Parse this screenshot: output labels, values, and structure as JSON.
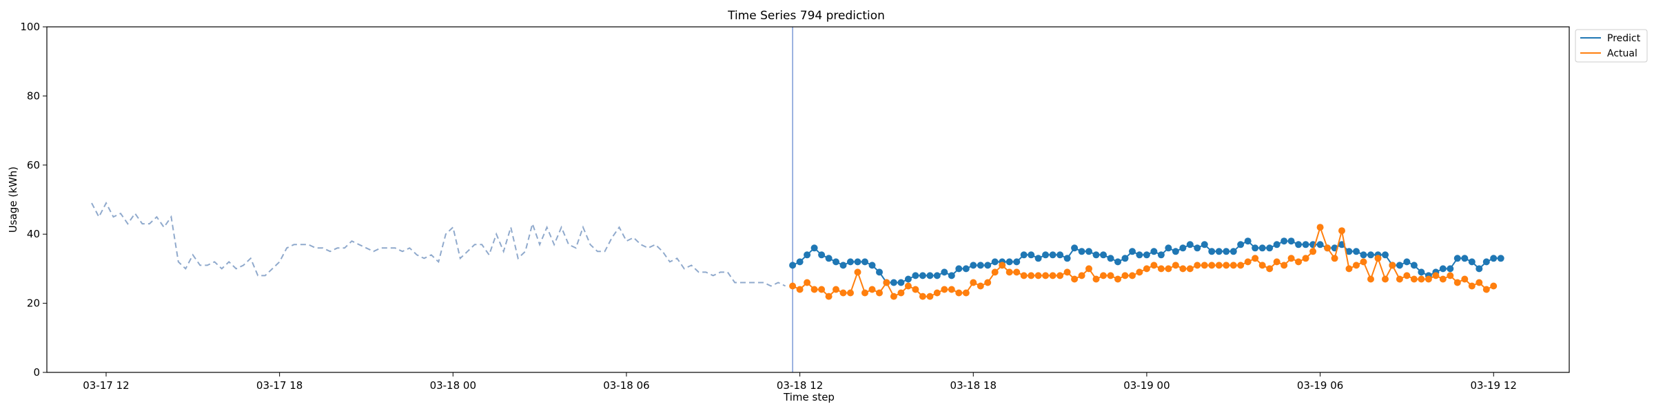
{
  "chart_data": {
    "type": "line",
    "title": "Time Series 794 prediction",
    "xlabel": "Time step",
    "ylabel": "Usage (kWh)",
    "ylim": [
      0,
      100
    ],
    "yticks": [
      0,
      20,
      40,
      60,
      80,
      100
    ],
    "xlim": [
      "2023-03-17T09:57",
      "2023-03-19T14:37"
    ],
    "xticks": [
      {
        "t": "2023-03-17T12:00",
        "label": "03-17 12"
      },
      {
        "t": "2023-03-17T18:00",
        "label": "03-17 18"
      },
      {
        "t": "2023-03-18T00:00",
        "label": "03-18 00"
      },
      {
        "t": "2023-03-18T06:00",
        "label": "03-18 06"
      },
      {
        "t": "2023-03-18T12:00",
        "label": "03-18 12"
      },
      {
        "t": "2023-03-18T18:00",
        "label": "03-18 18"
      },
      {
        "t": "2023-03-19T00:00",
        "label": "03-19 00"
      },
      {
        "t": "2023-03-19T06:00",
        "label": "03-19 06"
      },
      {
        "t": "2023-03-19T12:00",
        "label": "03-19 12"
      }
    ],
    "step_minutes": 15,
    "forecast_start": "2023-03-18T11:45",
    "grid": false,
    "legend_position": "top-right",
    "series": [
      {
        "key": "history",
        "start": "2023-03-17T11:30",
        "style": "dashed",
        "color": "#8fa9cc",
        "values": [
          49,
          45,
          49,
          45,
          46,
          43,
          46,
          43,
          43,
          45,
          42,
          45,
          32,
          30,
          34,
          31,
          31,
          32,
          30,
          32,
          30,
          31,
          33,
          28,
          28,
          30,
          32,
          36,
          37,
          37,
          37,
          36,
          36,
          35,
          36,
          36,
          38,
          37,
          36,
          35,
          36,
          36,
          36,
          35,
          36,
          34,
          33,
          34,
          32,
          40,
          42,
          33,
          35,
          37,
          37,
          34,
          40,
          35,
          42,
          33,
          35,
          43,
          37,
          42,
          37,
          42,
          37,
          36,
          42,
          37,
          35,
          35,
          39,
          42,
          38,
          39,
          37,
          36,
          37,
          35,
          32,
          33,
          30,
          31,
          29,
          29,
          28,
          29,
          29,
          26,
          26,
          26,
          26,
          26,
          25,
          26,
          25
        ]
      },
      {
        "key": "predict",
        "name": "Predict",
        "start": "2023-03-18T11:45",
        "color": "#1f77b4",
        "marker": true,
        "values": [
          31,
          32,
          34,
          36,
          34,
          33,
          32,
          31,
          32,
          32,
          32,
          31,
          29,
          26,
          26,
          26,
          27,
          28,
          28,
          28,
          28,
          29,
          28,
          30,
          30,
          31,
          31,
          31,
          32,
          32,
          32,
          32,
          34,
          34,
          33,
          34,
          34,
          34,
          33,
          36,
          35,
          35,
          34,
          34,
          33,
          32,
          33,
          35,
          34,
          34,
          35,
          34,
          36,
          35,
          36,
          37,
          36,
          37,
          35,
          35,
          35,
          35,
          37,
          38,
          36,
          36,
          36,
          37,
          38,
          38,
          37,
          37,
          37,
          37,
          36,
          36,
          37,
          35,
          35,
          34,
          34,
          34,
          34,
          31,
          31,
          32,
          31,
          29,
          28,
          29,
          30,
          30,
          33,
          33,
          32,
          30,
          32,
          33,
          33
        ]
      },
      {
        "key": "actual",
        "name": "Actual",
        "start": "2023-03-18T11:45",
        "color": "#ff7f0e",
        "marker": true,
        "values": [
          25,
          24,
          26,
          24,
          24,
          22,
          24,
          23,
          23,
          29,
          23,
          24,
          23,
          26,
          22,
          23,
          25,
          24,
          22,
          22,
          23,
          24,
          24,
          23,
          23,
          26,
          25,
          26,
          29,
          31,
          29,
          29,
          28,
          28,
          28,
          28,
          28,
          28,
          29,
          27,
          28,
          30,
          27,
          28,
          28,
          27,
          28,
          28,
          29,
          30,
          31,
          30,
          30,
          31,
          30,
          30,
          31,
          31,
          31,
          31,
          31,
          31,
          31,
          32,
          33,
          31,
          30,
          32,
          31,
          33,
          32,
          33,
          35,
          42,
          36,
          33,
          41,
          30,
          31,
          32,
          27,
          33,
          27,
          31,
          27,
          28,
          27,
          27,
          27,
          28,
          27,
          28,
          26,
          27,
          25,
          26,
          24,
          25
        ]
      }
    ]
  }
}
